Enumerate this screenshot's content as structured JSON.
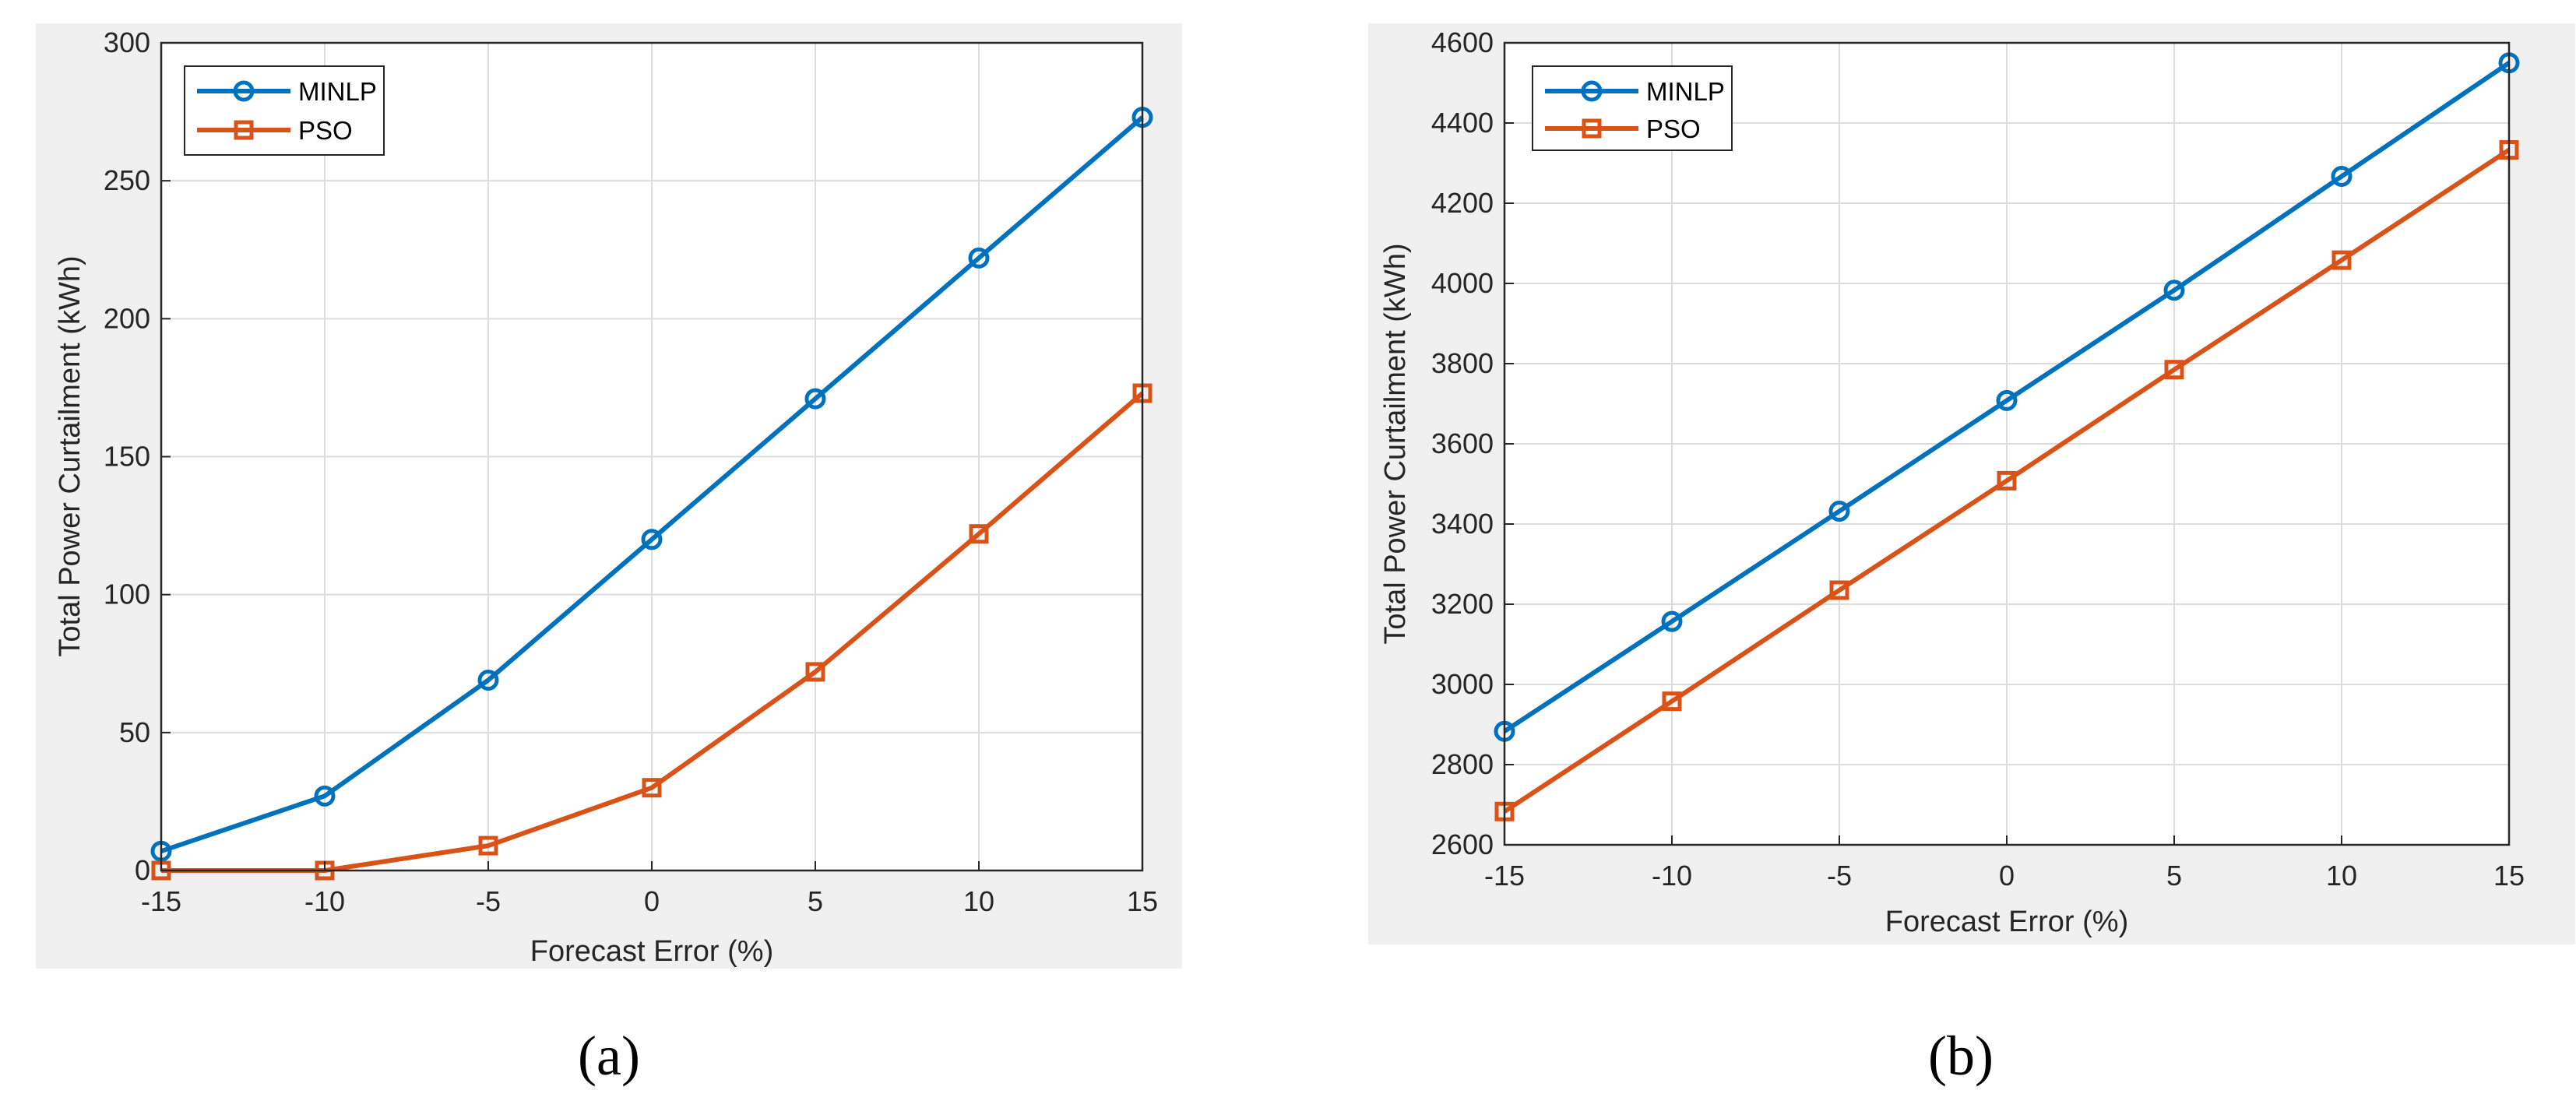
{
  "chart_data": [
    {
      "type": "line",
      "caption": "(a)",
      "xlabel": "Forecast Error (%)",
      "ylabel": "Total Power Curtailment (kWh)",
      "x": [
        -15,
        -10,
        -5,
        0,
        5,
        10,
        15
      ],
      "xlim": [
        -15,
        15
      ],
      "ylim": [
        0,
        300
      ],
      "xticks": [
        -15,
        -10,
        -5,
        0,
        5,
        10,
        15
      ],
      "yticks": [
        0,
        50,
        100,
        150,
        200,
        250,
        300
      ],
      "grid": true,
      "legend_position": "top-left",
      "series": [
        {
          "name": "MINLP",
          "color": "#0072BD",
          "marker": "circle",
          "values": [
            7,
            27,
            69,
            120,
            171,
            222,
            273
          ]
        },
        {
          "name": "PSO",
          "color": "#D95319",
          "marker": "square",
          "values": [
            0,
            0,
            9,
            30,
            72,
            122,
            173
          ]
        }
      ]
    },
    {
      "type": "line",
      "caption": "(b)",
      "xlabel": "Forecast Error (%)",
      "ylabel": "Total Power Curtailment (kWh)",
      "x": [
        -15,
        -10,
        -5,
        0,
        5,
        10,
        15
      ],
      "xlim": [
        -15,
        15
      ],
      "ylim": [
        2600,
        4600
      ],
      "xticks": [
        -15,
        -10,
        -5,
        0,
        5,
        10,
        15
      ],
      "yticks": [
        2600,
        2800,
        3000,
        3200,
        3400,
        3600,
        3800,
        4000,
        4200,
        4400,
        4600
      ],
      "grid": true,
      "legend_position": "top-left",
      "series": [
        {
          "name": "MINLP",
          "color": "#0072BD",
          "marker": "circle",
          "values": [
            2883,
            3157,
            3432,
            3708,
            3983,
            4267,
            4550
          ]
        },
        {
          "name": "PSO",
          "color": "#D95319",
          "marker": "square",
          "values": [
            2683,
            2958,
            3235,
            3508,
            3785,
            4058,
            4333
          ]
        }
      ]
    }
  ]
}
